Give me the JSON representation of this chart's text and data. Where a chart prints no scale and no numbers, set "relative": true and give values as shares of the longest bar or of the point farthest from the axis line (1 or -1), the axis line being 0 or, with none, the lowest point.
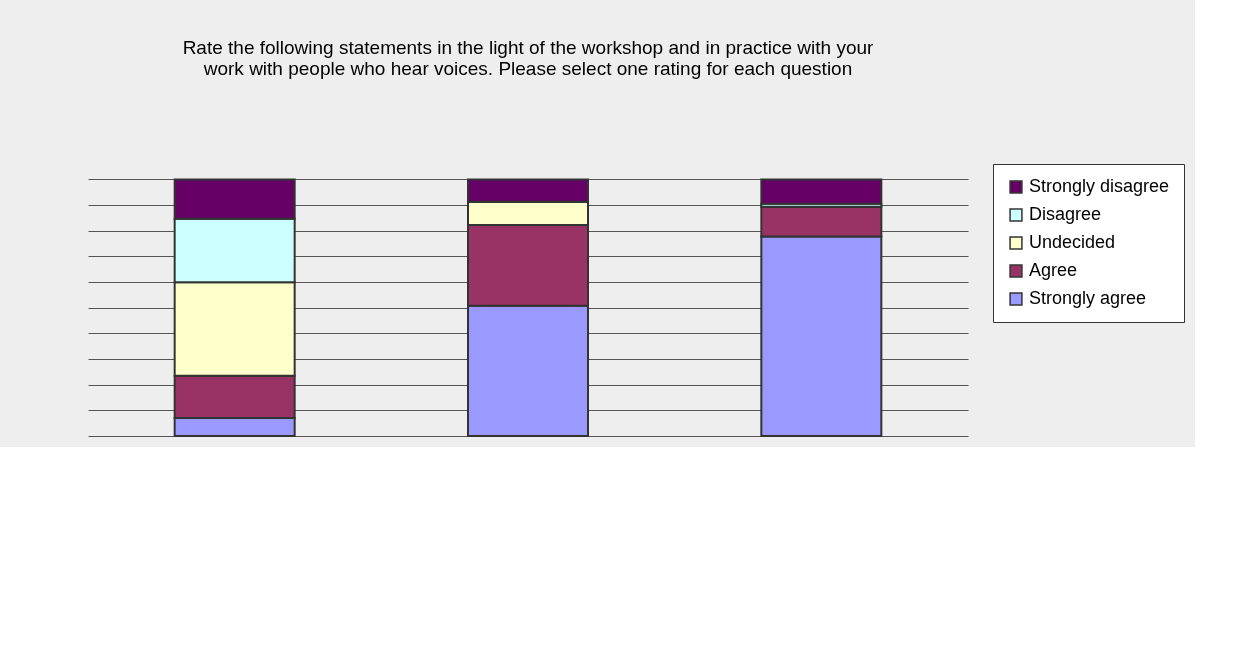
{
  "chart_data": {
    "type": "bar",
    "title": "Rate the following statements in the light of the workshop and in practice with your work with people who hear voices. Please select one rating for each question",
    "categories": [
      null,
      null,
      null
    ],
    "stacked": true,
    "relative": true,
    "grid": "y",
    "legend": "right",
    "series": [
      {
        "name": "Strongly agree",
        "color": "#9999ff",
        "values": [
          0.07,
          0.508,
          0.777
        ]
      },
      {
        "name": "Agree",
        "color": "#993366",
        "values": [
          0.165,
          0.314,
          0.116
        ]
      },
      {
        "name": "Undecided",
        "color": "#ffffcc",
        "values": [
          0.364,
          0.091,
          0
        ]
      },
      {
        "name": "Disagree",
        "color": "#ccffff",
        "values": [
          0.248,
          0,
          0.012
        ]
      },
      {
        "name": "Strongly disagree",
        "color": "#660066",
        "values": [
          0.153,
          0.087,
          0.095
        ]
      }
    ]
  }
}
